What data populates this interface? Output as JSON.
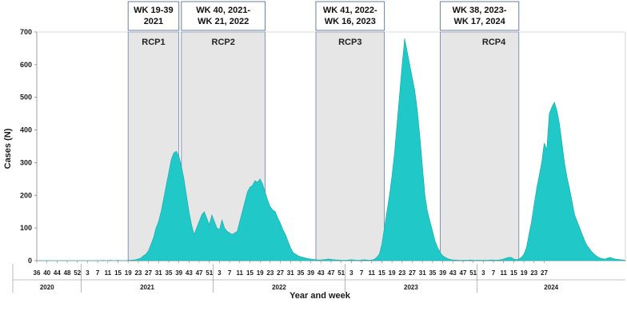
{
  "chart_data": {
    "type": "area",
    "title": "",
    "xlabel": "Year and week",
    "ylabel": "Cases (N)",
    "ylim": [
      0,
      700
    ],
    "yticks": [
      0,
      100,
      200,
      300,
      400,
      500,
      600,
      700
    ],
    "x_start": {
      "year": 2020,
      "week": 36
    },
    "x_end": {
      "year": 2024,
      "week": 27
    },
    "xtick_labels": [
      "36",
      "40",
      "44",
      "48",
      "52",
      "3",
      "7",
      "11",
      "15",
      "19",
      "23",
      "27",
      "31",
      "35",
      "39",
      "43",
      "47",
      "51",
      "3",
      "7",
      "11",
      "15",
      "19",
      "23",
      "27",
      "31",
      "35",
      "39",
      "43",
      "47",
      "51",
      "3",
      "7",
      "11",
      "15",
      "19",
      "23",
      "27",
      "31",
      "35",
      "39",
      "43",
      "47",
      "51",
      "3",
      "7",
      "11",
      "15",
      "19",
      "23",
      "27"
    ],
    "years": [
      "2020",
      "2021",
      "2022",
      "2023",
      "2024"
    ],
    "series": [
      {
        "color": "#20c8c8",
        "values": [
          0,
          0,
          0,
          0,
          0,
          0,
          0,
          0,
          0,
          0,
          0,
          0,
          0,
          0,
          0,
          0,
          0,
          0,
          0,
          0,
          0,
          0,
          0,
          0,
          0,
          0,
          1,
          0,
          0,
          1,
          0,
          0,
          1,
          0,
          0,
          0,
          1,
          1,
          2,
          3,
          5,
          8,
          15,
          20,
          30,
          50,
          70,
          100,
          120,
          150,
          190,
          230,
          270,
          310,
          330,
          335,
          320,
          290,
          250,
          200,
          150,
          110,
          80,
          100,
          120,
          140,
          150,
          130,
          110,
          140,
          120,
          100,
          95,
          125,
          100,
          90,
          85,
          80,
          85,
          90,
          120,
          150,
          180,
          210,
          225,
          230,
          245,
          240,
          250,
          235,
          210,
          185,
          165,
          155,
          150,
          130,
          115,
          95,
          80,
          60,
          40,
          25,
          20,
          15,
          12,
          10,
          8,
          6,
          5,
          4,
          3,
          2,
          2,
          3,
          4,
          5,
          4,
          3,
          2,
          2,
          1,
          1,
          1,
          2,
          3,
          2,
          1,
          1,
          2,
          3,
          2,
          1,
          2,
          4,
          10,
          20,
          50,
          100,
          150,
          200,
          260,
          330,
          420,
          510,
          600,
          680,
          640,
          600,
          560,
          520,
          460,
          380,
          290,
          200,
          150,
          120,
          90,
          60,
          40,
          25,
          15,
          10,
          6,
          4,
          2,
          2,
          1,
          1,
          1,
          1,
          1,
          2,
          1,
          1,
          1,
          1,
          1,
          1,
          1,
          2,
          2,
          1,
          2,
          3,
          5,
          8,
          10,
          10,
          5,
          3,
          5,
          10,
          20,
          40,
          80,
          120,
          170,
          220,
          260,
          300,
          360,
          340,
          450,
          470,
          485,
          460,
          420,
          360,
          300,
          255,
          220,
          180,
          140,
          120,
          100,
          80,
          60,
          45,
          35,
          25,
          18,
          12,
          8,
          6,
          5,
          8,
          10,
          7,
          5,
          4,
          3,
          2,
          1
        ]
      }
    ],
    "periods": [
      {
        "label": "RCP1",
        "box": [
          "WK 19-39",
          "2021"
        ],
        "start": {
          "year": 2021,
          "week": 19
        },
        "end": {
          "year": 2021,
          "week": 39
        }
      },
      {
        "label": "RCP2",
        "box": [
          "WK 40, 2021-",
          "WK 21, 2022"
        ],
        "start": {
          "year": 2021,
          "week": 40
        },
        "end": {
          "year": 2022,
          "week": 21
        }
      },
      {
        "label": "RCP3",
        "box": [
          "WK 41, 2022-",
          "WK 16, 2023"
        ],
        "start": {
          "year": 2022,
          "week": 41
        },
        "end": {
          "year": 2023,
          "week": 16
        }
      },
      {
        "label": "RCP4",
        "box": [
          "WK 38, 2023-",
          "WK 17, 2024"
        ],
        "start": {
          "year": 2023,
          "week": 38
        },
        "end": {
          "year": 2024,
          "week": 17
        }
      }
    ],
    "colors": {
      "area": "#20c8c8",
      "area_stroke": "#1aa7a7",
      "period_fill": "#e6e6e6",
      "period_stroke": "#6a7fa8"
    }
  }
}
